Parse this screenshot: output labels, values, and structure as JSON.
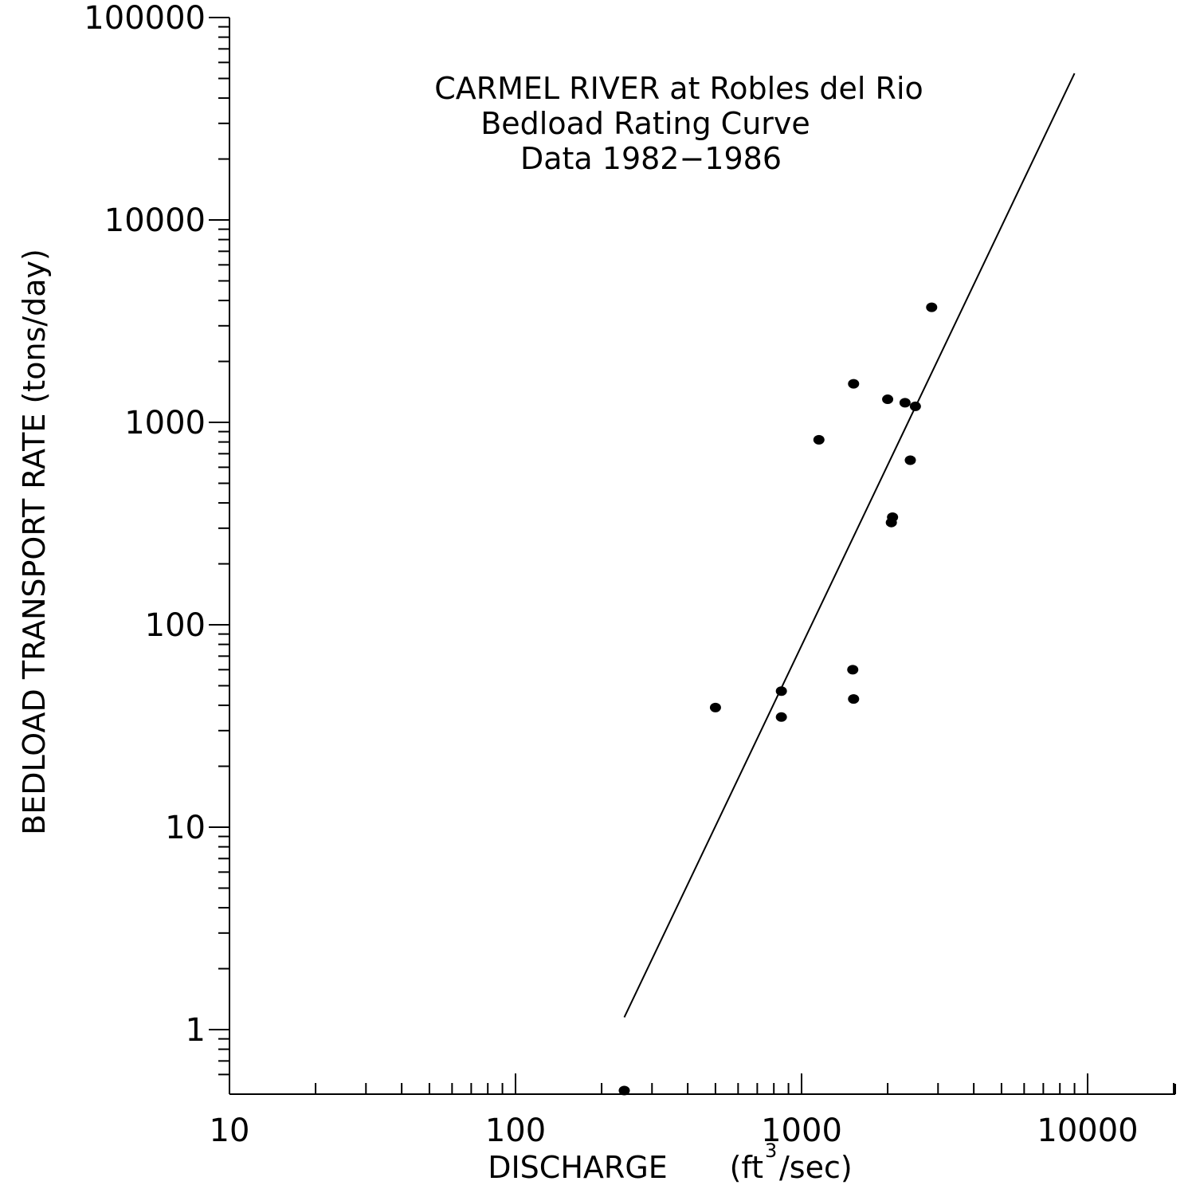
{
  "chart_data": {
    "type": "scatter",
    "title_lines": [
      "CARMEL RIVER at Robles del Rio",
      "Bedload Rating Curve",
      "Data 1982−1986"
    ],
    "xlabel": "DISCHARGE",
    "xlabel_unit_prefix": "(ft",
    "xlabel_unit_superscript": "3",
    "xlabel_unit_suffix": "/sec)",
    "ylabel": "BEDLOAD TRANSPORT RATE  (tons/day)",
    "x_scale": "log",
    "y_scale": "log",
    "xlim": [
      10,
      20000
    ],
    "ylim": [
      0.5,
      100000
    ],
    "x_ticks": [
      10,
      100,
      1000,
      10000
    ],
    "x_tick_labels": [
      "10",
      "100",
      "1000",
      "10000"
    ],
    "y_ticks": [
      1,
      10,
      100,
      1000,
      10000,
      100000
    ],
    "y_tick_labels": [
      "1",
      "10",
      "100",
      "1000",
      "10000",
      "100000"
    ],
    "grid": false,
    "points": [
      {
        "x": 240,
        "y": 0.5
      },
      {
        "x": 500,
        "y": 39
      },
      {
        "x": 850,
        "y": 47
      },
      {
        "x": 850,
        "y": 35
      },
      {
        "x": 1150,
        "y": 820
      },
      {
        "x": 1520,
        "y": 1550
      },
      {
        "x": 1510,
        "y": 60
      },
      {
        "x": 1520,
        "y": 43
      },
      {
        "x": 2000,
        "y": 1300
      },
      {
        "x": 2080,
        "y": 340
      },
      {
        "x": 2060,
        "y": 320
      },
      {
        "x": 2300,
        "y": 1250
      },
      {
        "x": 2500,
        "y": 1200
      },
      {
        "x": 2400,
        "y": 650
      },
      {
        "x": 2850,
        "y": 3700
      }
    ],
    "fit_line": {
      "x": [
        240,
        9000
      ],
      "y": [
        1.15,
        53000
      ]
    },
    "colors": {
      "marks": "#000000",
      "background": "#ffffff"
    }
  }
}
